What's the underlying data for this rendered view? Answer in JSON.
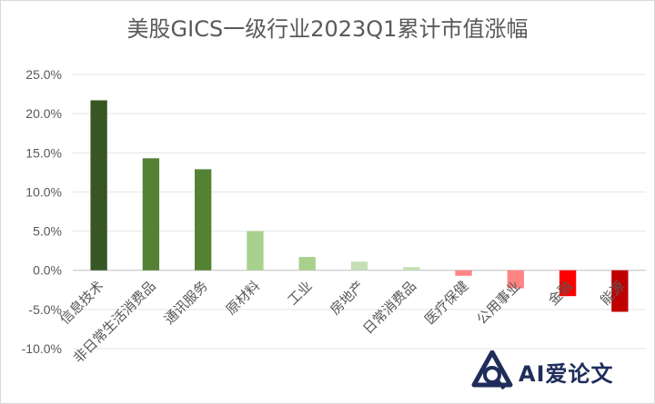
{
  "chart_data": {
    "type": "bar",
    "title": "美股GICS一级行业2023Q1累计市值涨幅",
    "xlabel": "",
    "ylabel": "",
    "ylim": [
      -10,
      25
    ],
    "yticks": [
      25,
      20,
      15,
      10,
      5,
      0,
      -5,
      -10
    ],
    "ytick_labels": [
      "25.0%",
      "20.0%",
      "15.0%",
      "10.0%",
      "5.0%",
      "0.0%",
      "-5.0%",
      "-10.0%"
    ],
    "grid": true,
    "categories": [
      "信息技术",
      "非日常生活消费品",
      "通讯服务",
      "原材料",
      "工业",
      "房地产",
      "日常消费品",
      "医疗保健",
      "公用事业",
      "金融",
      "能源"
    ],
    "values": [
      21.7,
      14.3,
      12.9,
      5.0,
      1.7,
      1.1,
      0.4,
      -0.7,
      -2.3,
      -3.3,
      -5.3
    ],
    "colors": [
      "#375623",
      "#548235",
      "#548235",
      "#a9d18e",
      "#a9d18e",
      "#c5e0b4",
      "#c5e0b4",
      "#ff8585",
      "#ff8585",
      "#ff0000",
      "#c00000"
    ]
  },
  "watermark": {
    "text": "AI爱论文"
  }
}
